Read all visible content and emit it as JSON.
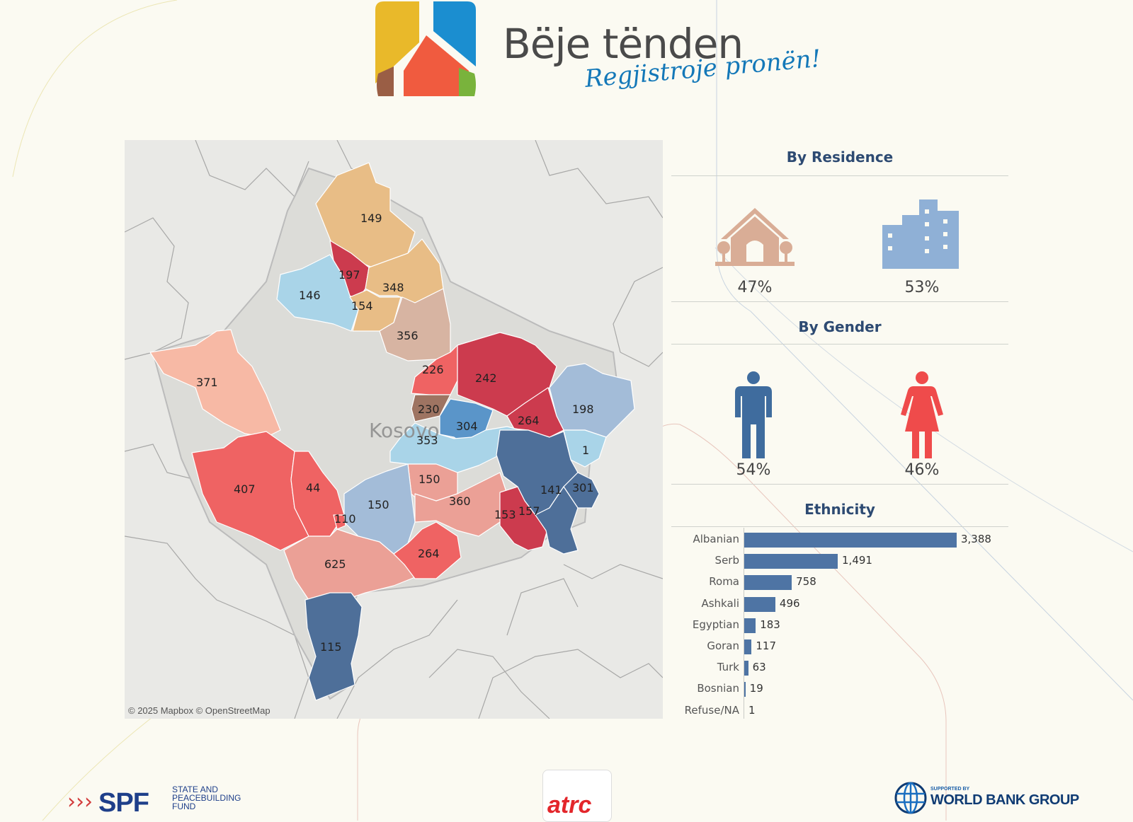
{
  "brand": {
    "title": "Bëje tënden",
    "tagline": "Regjistroje pronën!",
    "logo_colors": [
      "#e9b92a",
      "#1b8ed0",
      "#f05b3f",
      "#9a5e45",
      "#79b33c"
    ]
  },
  "map": {
    "country_label": "Kosovo",
    "attribution": "© 2025 Mapbox  © OpenStreetMap",
    "municipality_values": [
      "149",
      "197",
      "348",
      "146",
      "154",
      "356",
      "371",
      "226",
      "242",
      "198",
      "230",
      "304",
      "264",
      "353",
      "1",
      "407",
      "44",
      "150",
      "150",
      "360",
      "141",
      "301",
      "110",
      "153",
      "157",
      "625",
      "264",
      "115"
    ],
    "colors": {
      "light_blue": "#a9d4e8",
      "mid_blue": "#a3bcd8",
      "dark_blue": "#4e6f99",
      "deep_blue": "#5a95c9",
      "crimson": "#cc3b4e",
      "coral": "#ef6363",
      "salmon": "#eba096",
      "pale_salmon": "#f7b9a5",
      "tan": "#e8bd86",
      "rose_tan": "#d7b4a2",
      "brown": "#9e7462"
    }
  },
  "residence": {
    "title": "By Residence",
    "rural_pct": "47%",
    "urban_pct": "53%",
    "rural_icon": "house-icon",
    "urban_icon": "buildings-icon"
  },
  "gender": {
    "title": "By Gender",
    "male_pct": "54%",
    "female_pct": "46%",
    "male_icon": "male-icon",
    "female_icon": "female-icon"
  },
  "chart_data": {
    "type": "bar",
    "title": "Ethnicity",
    "categories": [
      "Albanian",
      "Serb",
      "Roma",
      "Ashkali",
      "Egyptian",
      "Goran",
      "Turk",
      "Bosnian",
      "Refuse/NA"
    ],
    "values": [
      3388,
      1491,
      758,
      496,
      183,
      117,
      63,
      19,
      1
    ],
    "value_labels": [
      "3,388",
      "1,491",
      "758",
      "496",
      "183",
      "117",
      "63",
      "19",
      "1"
    ],
    "orientation": "horizontal",
    "xlim": [
      0,
      3388
    ],
    "bar_color": "#4e74a4",
    "grid": false
  },
  "footer": {
    "spf": {
      "name": "SPF",
      "full": "STATE AND PEACEBUILDING FUND"
    },
    "atrc": {
      "name": "atrc"
    },
    "world_bank": {
      "supported": "SUPPORTED BY",
      "name": "WORLD BANK GROUP"
    }
  }
}
